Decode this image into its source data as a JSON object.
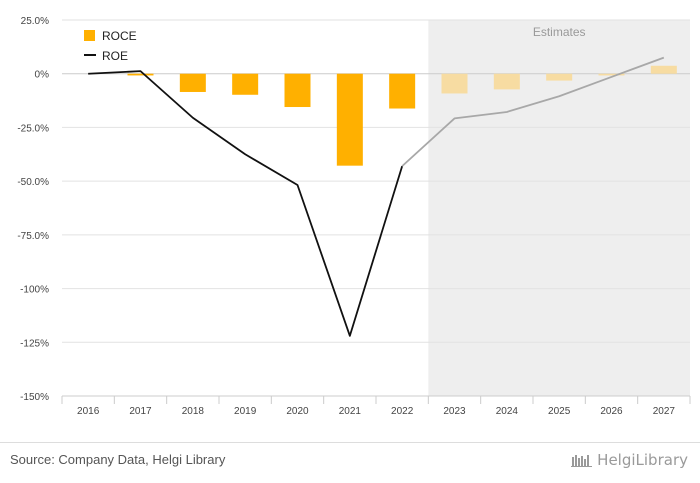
{
  "chart_data": {
    "type": "bar+line",
    "categories": [
      "2016",
      "2017",
      "2018",
      "2019",
      "2020",
      "2021",
      "2022",
      "2023",
      "2024",
      "2025",
      "2026",
      "2027"
    ],
    "estimate_start_index": 7,
    "estimates_label": "Estimates",
    "ylim": [
      -150,
      25
    ],
    "yticks": [
      25,
      0,
      -25,
      -50,
      -75,
      -100,
      -125,
      -150
    ],
    "ytick_labels": [
      "25.0%",
      "0%",
      "-25.0%",
      "-50.0%",
      "-75.0%",
      "-100%",
      "-125%",
      "-150%"
    ],
    "series": [
      {
        "name": "ROCE",
        "type": "bar",
        "values": [
          0,
          -0.8,
          -8.5,
          -9.8,
          -15.5,
          -42.8,
          -16.2,
          -9.2,
          -7.3,
          -3.2,
          -0.8,
          3.7
        ],
        "color": "#FFB000",
        "estimate_color": "#F7DCA2"
      },
      {
        "name": "ROE",
        "type": "line",
        "values": [
          0,
          1.2,
          -20.5,
          -37.5,
          -51.8,
          -122,
          -43,
          -20.8,
          -17.8,
          -10.5,
          -1.5,
          7.5
        ],
        "color": "#111111",
        "estimate_color": "#A8A8A8"
      }
    ],
    "legend_position": "top-left",
    "grid": true
  },
  "footer": {
    "source": "Source: Company Data, Helgi Library",
    "brand": "HelgiLibrary",
    "brand_icon": "library-logo-icon"
  }
}
